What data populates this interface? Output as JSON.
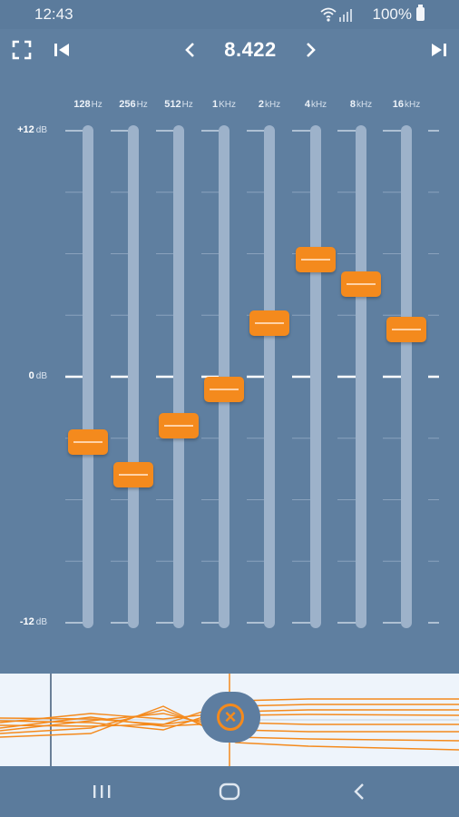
{
  "status_bar": {
    "time": "12:43",
    "battery": "100%"
  },
  "toolbar": {
    "preset_value": "8.422"
  },
  "equalizer": {
    "db_scale": [
      {
        "value": "+12",
        "unit": "dB"
      },
      {
        "value": "0",
        "unit": "dB"
      },
      {
        "value": "-12",
        "unit": "dB"
      }
    ],
    "bands": [
      {
        "freq": "128",
        "unit": "Hz",
        "gain_db": -3.2
      },
      {
        "freq": "256",
        "unit": "Hz",
        "gain_db": -4.8
      },
      {
        "freq": "512",
        "unit": "Hz",
        "gain_db": -2.4
      },
      {
        "freq": "1",
        "unit": "KHz",
        "gain_db": -0.6
      },
      {
        "freq": "2",
        "unit": "kHz",
        "gain_db": 2.6
      },
      {
        "freq": "4",
        "unit": "kHz",
        "gain_db": 5.7
      },
      {
        "freq": "8",
        "unit": "kHz",
        "gain_db": 4.5
      },
      {
        "freq": "16",
        "unit": "kHz",
        "gain_db": 2.3
      }
    ]
  },
  "colors": {
    "accent": "#f48a1d",
    "background": "#5f7fa0",
    "track": "#9db2ca"
  },
  "icons": {
    "fullscreen": "fullscreen-icon",
    "prev_track": "skip-previous-icon",
    "prev_preset": "chevron-left-icon",
    "next_preset": "chevron-right-icon",
    "next_track": "skip-next-icon",
    "reset": "close-circle-icon"
  }
}
